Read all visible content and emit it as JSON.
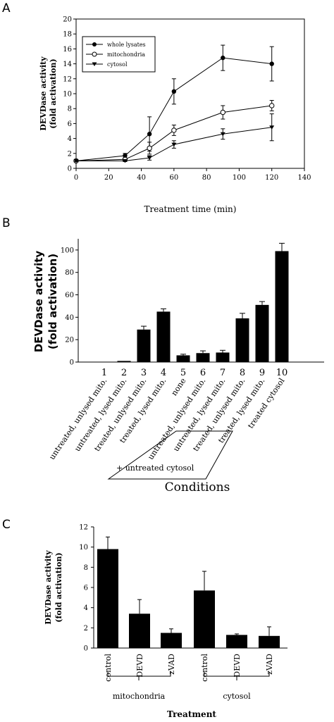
{
  "panels": {
    "a": "A",
    "b": "B",
    "c": "C"
  },
  "chart_data": [
    {
      "type": "line",
      "ylabel_line1": "DEVDase activity",
      "ylabel_line2": "(fold activation)",
      "xlabel": "Treatment time (min)",
      "xlim": [
        0,
        140
      ],
      "ylim": [
        0,
        20
      ],
      "xticks": [
        "0",
        "20",
        "40",
        "60",
        "80",
        "100",
        "120",
        "140"
      ],
      "yticks": [
        "0",
        "2",
        "4",
        "6",
        "8",
        "10",
        "12",
        "14",
        "16",
        "18",
        "20"
      ],
      "legend_position": "top-left",
      "x": [
        0,
        30,
        45,
        60,
        90,
        120
      ],
      "series": [
        {
          "name": "whole lysates",
          "marker": "filled-circle",
          "values": [
            1.0,
            1.7,
            4.6,
            10.3,
            14.8,
            14.0
          ],
          "errors": [
            0.1,
            0.3,
            2.3,
            1.7,
            1.7,
            2.3
          ]
        },
        {
          "name": "mitochondria",
          "marker": "open-circle",
          "values": [
            1.0,
            1.2,
            2.7,
            5.1,
            7.5,
            8.4
          ],
          "errors": [
            0.1,
            0.2,
            0.8,
            0.7,
            0.9,
            0.7
          ]
        },
        {
          "name": "cytosol",
          "marker": "filled-triangle-down",
          "values": [
            1.0,
            1.0,
            1.4,
            3.2,
            4.6,
            5.5
          ],
          "errors": [
            0.1,
            0.1,
            0.3,
            0.5,
            0.7,
            1.8
          ]
        }
      ]
    },
    {
      "type": "bar",
      "ylabel_line1": "DEVDase activity",
      "ylabel_line2": "(fold activation)",
      "xlabel": "Conditions",
      "ylim": [
        0,
        110
      ],
      "yticks": [
        "0",
        "20",
        "40",
        "60",
        "80",
        "100"
      ],
      "numbers": [
        "1",
        "2",
        "3",
        "4",
        "5",
        "6",
        "7",
        "8",
        "9",
        "10"
      ],
      "categories": [
        "untreated, unlysed mito.",
        "untreated, lysed mito.",
        "treated, unlysed mito.",
        "treated, lysed mito.",
        "none",
        "untreated, unlysed mito.",
        "untreated, lysed mito.",
        "treated, unlysed mito.",
        "treated, lysed mito.",
        "treated cytosol"
      ],
      "values": [
        0.3,
        1.0,
        29,
        45,
        6,
        8,
        8.5,
        39,
        51,
        99
      ],
      "errors": [
        0,
        0,
        3,
        2.5,
        1,
        2,
        2,
        4.5,
        3,
        7
      ],
      "group_label": "+ untreated cytosol"
    },
    {
      "type": "bar",
      "ylabel_line1": "DEVDase activity",
      "ylabel_line2": "(fold activation)",
      "xlabel": "Treatment",
      "ylim": [
        0,
        12
      ],
      "yticks": [
        "0",
        "2",
        "4",
        "6",
        "8",
        "10",
        "12"
      ],
      "categories": [
        "control",
        "DEVD",
        "zVAD",
        "control",
        "DEVD",
        "zVAD"
      ],
      "values": [
        9.8,
        3.4,
        1.5,
        5.7,
        1.3,
        1.2
      ],
      "errors": [
        1.2,
        1.4,
        0.4,
        1.9,
        0.1,
        0.9
      ],
      "groups": [
        "mitochondria",
        "cytosol"
      ]
    }
  ]
}
